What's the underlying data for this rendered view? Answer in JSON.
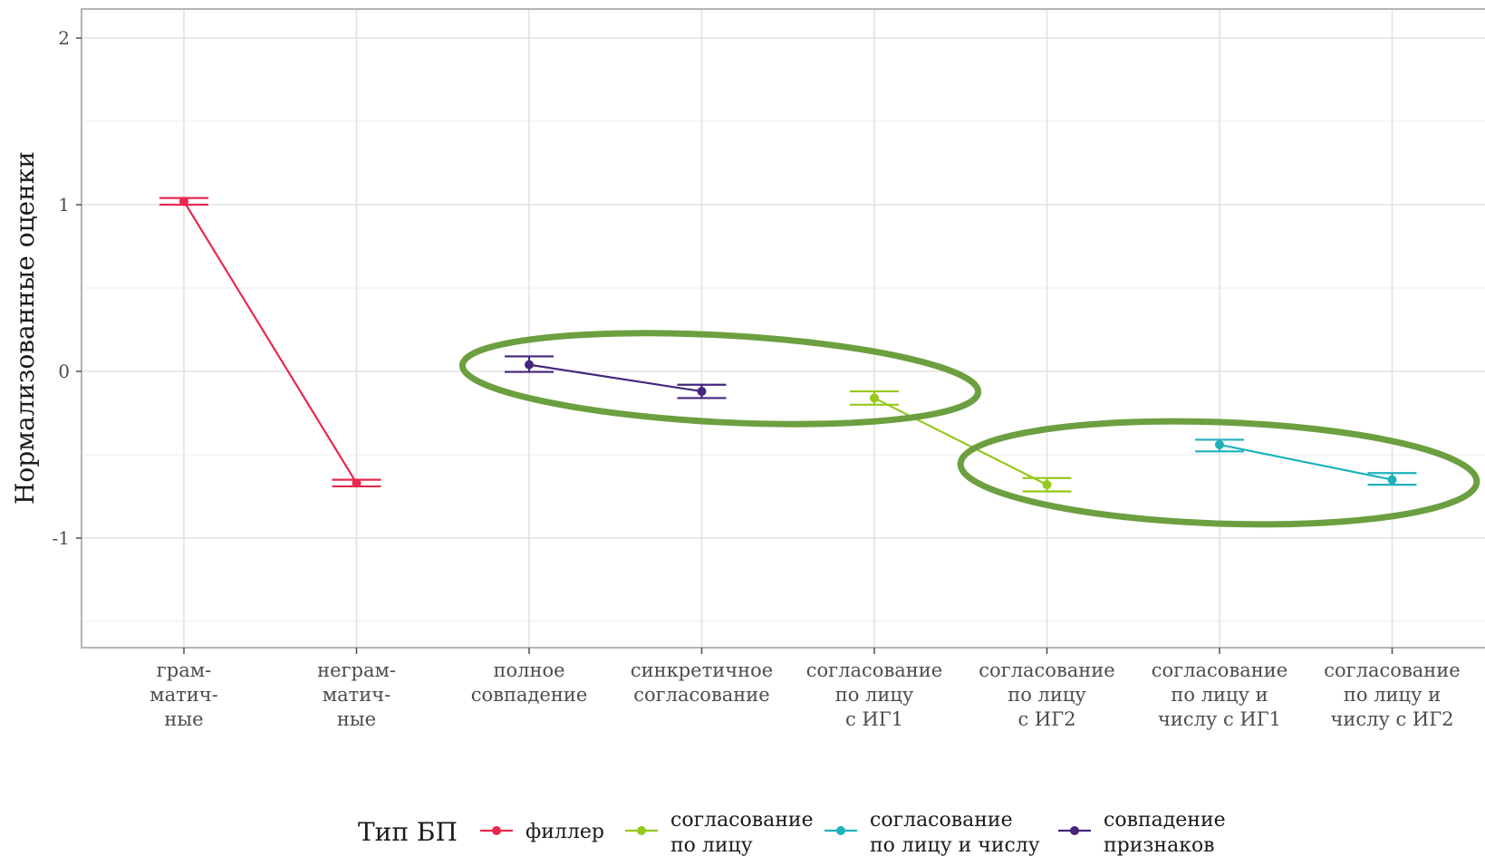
{
  "chart_data": {
    "type": "line",
    "ylabel": "Нормализованные оценки",
    "xlabel": "",
    "ylim": [
      -1.7,
      2.17
    ],
    "yticks": [
      2,
      1,
      0,
      -1
    ],
    "ytick_labels": [
      "2",
      "1",
      "0",
      "-1"
    ],
    "grid": true,
    "categories": [
      [
        "грам-",
        "матич-",
        "ные"
      ],
      [
        "неграм-",
        "матич-",
        "ные"
      ],
      [
        "полное",
        "совпадение"
      ],
      [
        "синкретичное",
        "согласование"
      ],
      [
        "согласование",
        "по лицу",
        "с ИГ1"
      ],
      [
        "согласование",
        "по лицу",
        "с ИГ2"
      ],
      [
        "согласование",
        "по лицу и",
        "числу с ИГ1"
      ],
      [
        "согласование",
        "по лицу и",
        "числу с ИГ2"
      ]
    ],
    "series": [
      {
        "name": "филлер",
        "color": "#e8284f",
        "x": [
          0,
          1
        ],
        "y": [
          1.02,
          -0.67
        ],
        "err_low": [
          1.0,
          -0.69
        ],
        "err_high": [
          1.04,
          -0.65
        ]
      },
      {
        "name": "совпадение признаков",
        "color": "#45257e",
        "x": [
          2,
          3
        ],
        "y": [
          0.04,
          -0.12
        ],
        "err_low": [
          -0.003,
          -0.16
        ],
        "err_high": [
          0.09,
          -0.08
        ]
      },
      {
        "name": "согласование по лицу",
        "color": "#94c91b",
        "x": [
          4,
          5
        ],
        "y": [
          -0.16,
          -0.68
        ],
        "err_low": [
          -0.2,
          -0.72
        ],
        "err_high": [
          -0.12,
          -0.64
        ]
      },
      {
        "name": "согласование по лицу и числу",
        "color": "#1eb2ba",
        "x": [
          6,
          7
        ],
        "y": [
          -0.44,
          -0.65
        ],
        "err_low": [
          -0.48,
          -0.68
        ],
        "err_high": [
          -0.41,
          -0.61
        ]
      }
    ],
    "highlight_color": "#6c9f40",
    "legend": {
      "title": "Тип БП",
      "position": "bottom",
      "entries": [
        {
          "lines": [
            "филлер"
          ],
          "color": "#e8284f"
        },
        {
          "lines": [
            "согласование",
            "по лицу"
          ],
          "color": "#94c91b"
        },
        {
          "lines": [
            "согласование",
            "по лицу и числу"
          ],
          "color": "#1eb2ba"
        },
        {
          "lines": [
            "совпадение",
            "признаков"
          ],
          "color": "#45257e"
        }
      ]
    }
  }
}
